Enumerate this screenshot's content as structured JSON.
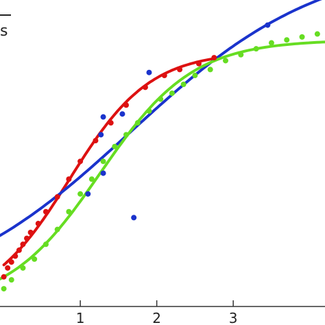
{
  "chart_data": {
    "type": "scatter",
    "title": "",
    "xlabel": "",
    "ylabel": "",
    "xlim": [
      -0.05,
      4.2
    ],
    "ylim": [
      0,
      1.0
    ],
    "x_ticks": [
      {
        "value": 1,
        "label": "1"
      },
      {
        "value": 2,
        "label": "2"
      },
      {
        "value": 3,
        "label": "3"
      }
    ],
    "grid": false,
    "legend": {
      "placement": "top-left",
      "visible_text": "s"
    },
    "series": [
      {
        "color": "#dd1111",
        "points": [
          [
            0.0,
            0.1
          ],
          [
            0.05,
            0.13
          ],
          [
            0.1,
            0.15
          ],
          [
            0.15,
            0.17
          ],
          [
            0.2,
            0.19
          ],
          [
            0.25,
            0.21
          ],
          [
            0.3,
            0.23
          ],
          [
            0.35,
            0.25
          ],
          [
            0.45,
            0.28
          ],
          [
            0.55,
            0.32
          ],
          [
            0.7,
            0.37
          ],
          [
            0.85,
            0.43
          ],
          [
            1.0,
            0.49
          ],
          [
            1.2,
            0.56
          ],
          [
            1.4,
            0.62
          ],
          [
            1.6,
            0.68
          ],
          [
            1.85,
            0.74
          ],
          [
            2.1,
            0.78
          ],
          [
            2.3,
            0.8
          ],
          [
            2.55,
            0.82
          ],
          [
            2.75,
            0.84
          ]
        ],
        "fit_range": [
          0.0,
          2.78
        ]
      },
      {
        "color": "#1a33cc",
        "points": [
          [
            1.1,
            0.38
          ],
          [
            1.3,
            0.45
          ],
          [
            1.27,
            0.58
          ],
          [
            1.3,
            0.64
          ],
          [
            1.55,
            0.65
          ],
          [
            1.7,
            0.3
          ],
          [
            1.9,
            0.79
          ],
          [
            3.45,
            0.95
          ]
        ],
        "fit_range": [
          -0.05,
          4.2
        ]
      },
      {
        "color": "#66dd22",
        "points": [
          [
            0.0,
            0.06
          ],
          [
            0.1,
            0.09
          ],
          [
            0.25,
            0.13
          ],
          [
            0.4,
            0.16
          ],
          [
            0.55,
            0.21
          ],
          [
            0.7,
            0.26
          ],
          [
            0.85,
            0.32
          ],
          [
            1.0,
            0.38
          ],
          [
            1.15,
            0.43
          ],
          [
            1.3,
            0.49
          ],
          [
            1.45,
            0.54
          ],
          [
            1.6,
            0.58
          ],
          [
            1.75,
            0.62
          ],
          [
            1.9,
            0.66
          ],
          [
            2.05,
            0.7
          ],
          [
            2.2,
            0.72
          ],
          [
            2.35,
            0.75
          ],
          [
            2.5,
            0.78
          ],
          [
            2.7,
            0.8
          ],
          [
            2.9,
            0.83
          ],
          [
            3.1,
            0.85
          ],
          [
            3.3,
            0.87
          ],
          [
            3.5,
            0.89
          ],
          [
            3.7,
            0.9
          ],
          [
            3.9,
            0.91
          ],
          [
            4.1,
            0.92
          ]
        ],
        "fit_range": [
          -0.05,
          4.2
        ]
      }
    ]
  }
}
